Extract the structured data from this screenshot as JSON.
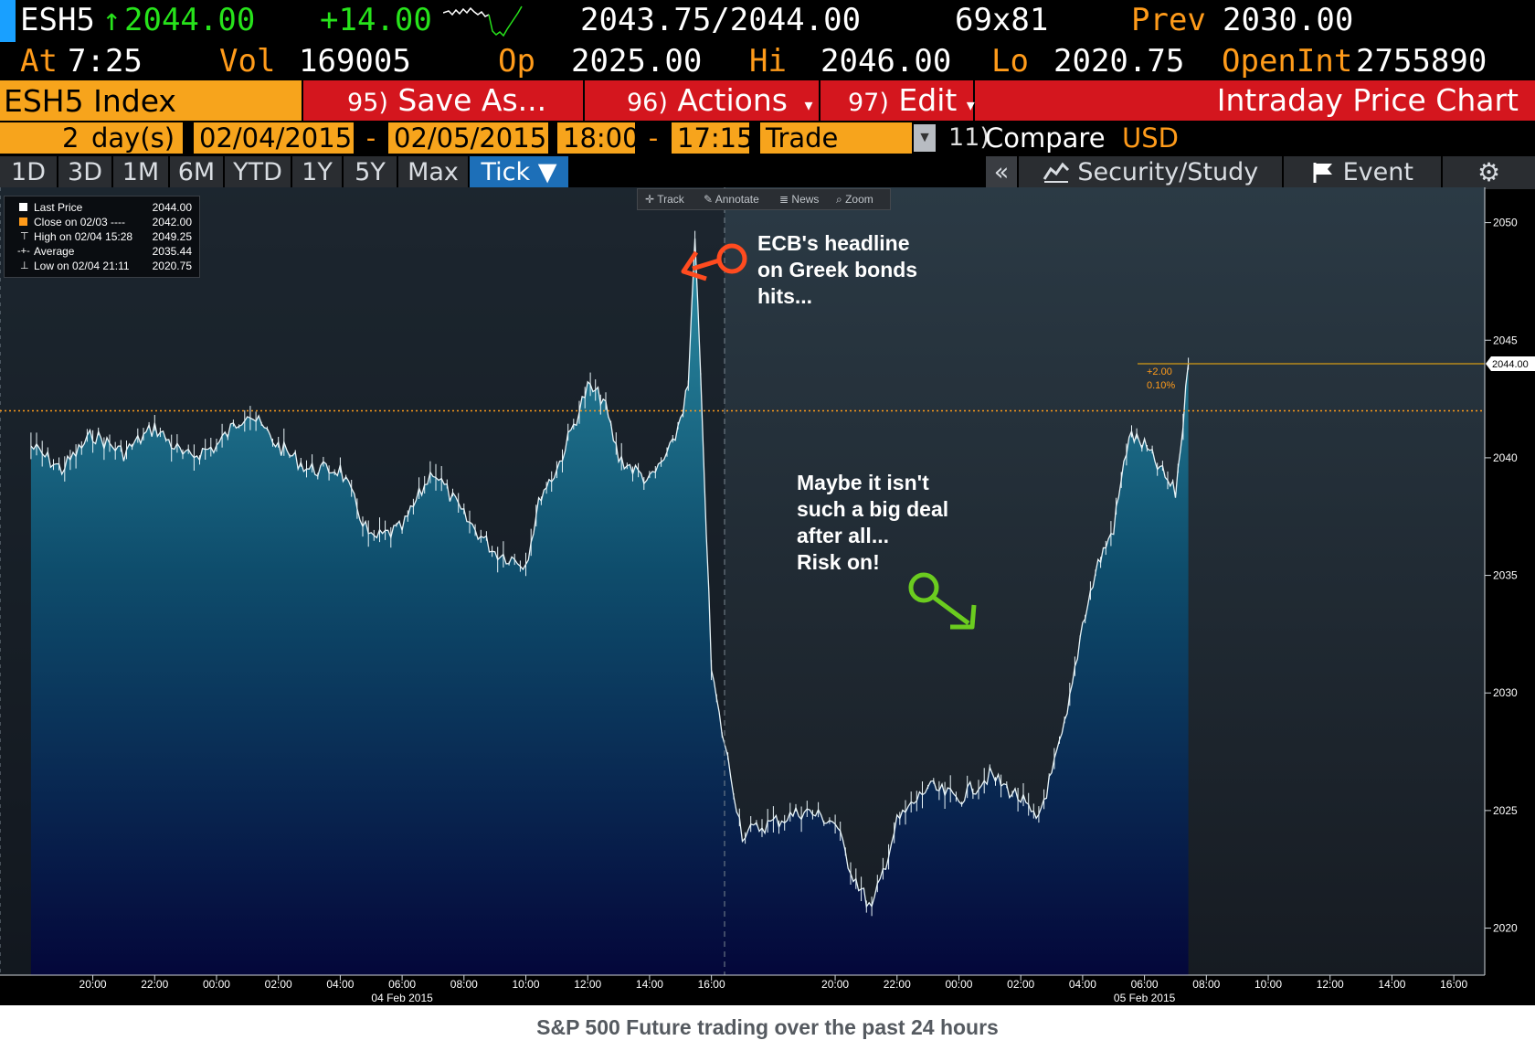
{
  "header": {
    "ticker": "ESH5",
    "arrow": "↑",
    "last": "2044.00",
    "change": "+14.00",
    "bid_ask": "2043.75/2044.00",
    "size": "69x81",
    "prev_label": "Prev",
    "prev": "2030.00",
    "at_label": "At",
    "at_time": "7:25",
    "vol_label": "Vol",
    "vol": "169005",
    "op_label": "Op",
    "op": "2025.00",
    "hi_label": "Hi",
    "hi": "2046.00",
    "lo_label": "Lo",
    "lo": "2020.75",
    "openint_label": "OpenInt",
    "openint": "2755890"
  },
  "menu": {
    "security": "ESH5 Index",
    "save_num": "95)",
    "save": "Save As...",
    "actions_num": "96)",
    "actions": "Actions",
    "edit_num": "97)",
    "edit": "Edit",
    "title": "Intraday Price Chart"
  },
  "controls": {
    "days_num": "2",
    "days_label": "day(s)",
    "start_date": "02/04/2015",
    "dash": "-",
    "end_date": "02/05/2015",
    "start_time": "18:00",
    "end_time": "17:15",
    "mode": "Trade",
    "compare_num": "11)",
    "compare": "Compare",
    "currency": "USD"
  },
  "tabs": [
    "1D",
    "3D",
    "1M",
    "6M",
    "YTD",
    "1Y",
    "5Y",
    "Max",
    "Tick ▼"
  ],
  "right_tabs": {
    "collapse": "«",
    "security_study": "Security/Study",
    "event": "Event"
  },
  "toolbar": [
    "Track",
    "Annotate",
    "News",
    "Zoom"
  ],
  "legend": [
    {
      "label": "Last Price",
      "value": "2044.00"
    },
    {
      "label": "Close on 02/03 ----",
      "value": "2042.00"
    },
    {
      "label": "High on 02/04 15:28",
      "value": "2049.25"
    },
    {
      "label": "Average",
      "value": "2035.44"
    },
    {
      "label": "Low on 02/04 21:11",
      "value": "2020.75"
    }
  ],
  "annotations": {
    "ecb": [
      "ECB's headline",
      "on Greek bonds",
      "hits..."
    ],
    "maybe": [
      "Maybe it isn't",
      "such a big deal",
      "after all...",
      "Risk on!"
    ]
  },
  "last_tag": {
    "change": "+2.00",
    "pct": "0.10%",
    "price": "2044.00"
  },
  "caption": "S&P 500 Future trading over the past 24 hours",
  "colors": {
    "amber": "#ff9b1a",
    "red": "#d4161e",
    "green": "#27e31b",
    "close_line": "#ff9b1a",
    "last_line": "#d49a16"
  },
  "chart_data": {
    "type": "area",
    "title": "Intraday Price Chart",
    "xlabel": "",
    "ylabel": "",
    "ylim": [
      2018,
      2051.5
    ],
    "yticks": [
      "2020",
      "2025",
      "2030",
      "2035",
      "2040",
      "2045",
      "2050"
    ],
    "xticks": [
      "20:00",
      "22:00",
      "00:00",
      "02:00",
      "04:00",
      "06:00",
      "08:00",
      "10:00",
      "12:00",
      "14:00",
      "16:00",
      "20:00",
      "22:00",
      "00:00",
      "02:00",
      "04:00",
      "06:00",
      "08:00",
      "10:00",
      "12:00",
      "14:00",
      "16:00"
    ],
    "date_labels": [
      "04 Feb 2015",
      "05 Feb 2015"
    ],
    "series": [
      {
        "name": "Last Price",
        "x": [
          "02/03 18:00",
          "02/03 19:00",
          "02/03 20:00",
          "02/03 21:00",
          "02/03 22:00",
          "02/03 23:00",
          "02/04 00:00",
          "02/04 01:00",
          "02/04 02:00",
          "02/04 03:00",
          "02/04 04:00",
          "02/04 05:00",
          "02/04 06:00",
          "02/04 07:00",
          "02/04 08:00",
          "02/04 09:00",
          "02/04 10:00",
          "02/04 10:30",
          "02/04 11:00",
          "02/04 12:00",
          "02/04 12:30",
          "02/04 13:00",
          "02/04 14:00",
          "02/04 14:45",
          "02/04 15:15",
          "02/04 15:28",
          "02/04 15:45",
          "02/04 16:00",
          "02/04 16:15",
          "02/04 17:00",
          "02/04 18:00",
          "02/04 19:00",
          "02/04 20:00",
          "02/04 20:30",
          "02/04 21:11",
          "02/04 22:00",
          "02/04 23:00",
          "02/05 00:00",
          "02/05 01:00",
          "02/05 02:00",
          "02/05 02:30",
          "02/05 03:00",
          "02/05 03:30",
          "02/05 04:00",
          "02/05 04:30",
          "02/05 05:00",
          "02/05 05:30",
          "02/05 06:00",
          "02/05 06:30",
          "02/05 07:00",
          "02/05 07:15",
          "02/05 07:25"
        ],
        "values": [
          2040.5,
          2039.5,
          2041.0,
          2040.2,
          2041.3,
          2040.0,
          2040.5,
          2042.0,
          2040.5,
          2039.5,
          2039.5,
          2036.5,
          2037.0,
          2039.5,
          2037.5,
          2036.0,
          2035.5,
          2038.5,
          2039.5,
          2043.0,
          2042.5,
          2040.0,
          2039.0,
          2040.5,
          2043.0,
          2049.25,
          2040.0,
          2031.0,
          2029.0,
          2024.0,
          2024.5,
          2025.0,
          2024.5,
          2022.5,
          2020.75,
          2024.5,
          2026.0,
          2025.5,
          2026.5,
          2025.5,
          2024.5,
          2026.5,
          2029.0,
          2033.0,
          2035.5,
          2037.0,
          2041.0,
          2040.5,
          2039.5,
          2038.5,
          2041.5,
          2044.0
        ]
      }
    ],
    "reference_lines": [
      {
        "name": "Close on 02/03",
        "value": 2042.0
      },
      {
        "name": "Last Price",
        "value": 2044.0
      }
    ]
  }
}
